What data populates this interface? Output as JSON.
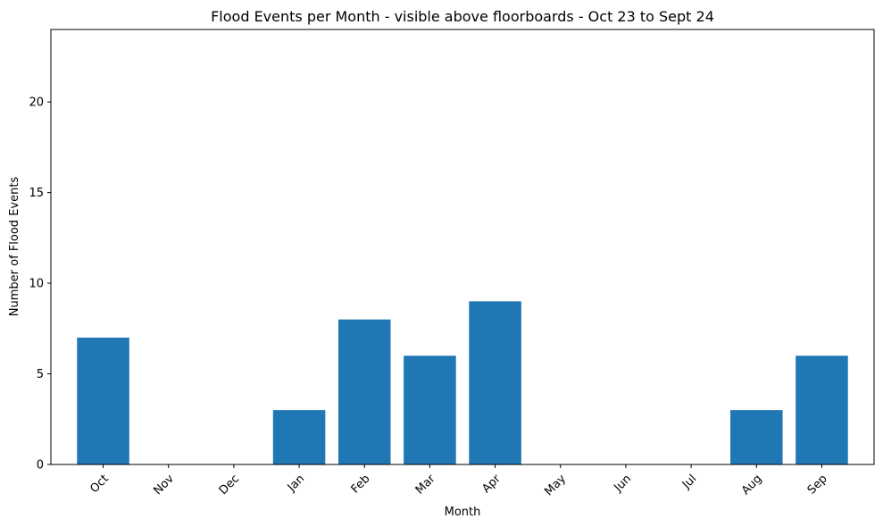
{
  "chart_data": {
    "type": "bar",
    "title": "Flood Events per Month - visible above floorboards - Oct 23 to Sept 24",
    "xlabel": "Month",
    "ylabel": "Number of Flood Events",
    "categories": [
      "Oct",
      "Nov",
      "Dec",
      "Jan",
      "Feb",
      "Mar",
      "Apr",
      "May",
      "Jun",
      "Jul",
      "Aug",
      "Sep"
    ],
    "values": [
      7,
      0,
      0,
      3,
      8,
      6,
      9,
      0,
      0,
      0,
      3,
      6
    ],
    "ylim": [
      0,
      24
    ],
    "yticks": [
      0,
      5,
      10,
      15,
      20
    ],
    "xtick_rotation": 45,
    "grid": false,
    "bar_color": "#1f77b4"
  }
}
